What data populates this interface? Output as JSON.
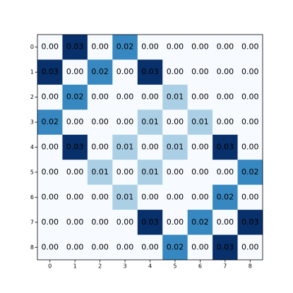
{
  "chart_data": {
    "type": "heatmap",
    "x": [
      0,
      1,
      2,
      3,
      4,
      5,
      6,
      7,
      8
    ],
    "y": [
      0,
      1,
      2,
      3,
      4,
      5,
      6,
      7,
      8
    ],
    "values": [
      [
        0.0,
        0.03,
        0.0,
        0.02,
        0.0,
        0.0,
        0.0,
        0.0,
        0.0
      ],
      [
        0.03,
        0.0,
        0.02,
        0.0,
        0.03,
        0.0,
        0.0,
        0.0,
        0.0
      ],
      [
        0.0,
        0.02,
        0.0,
        0.0,
        0.0,
        0.01,
        0.0,
        0.0,
        0.0
      ],
      [
        0.02,
        0.0,
        0.0,
        0.0,
        0.01,
        0.0,
        0.01,
        0.0,
        0.0
      ],
      [
        0.0,
        0.03,
        0.0,
        0.01,
        0.0,
        0.01,
        0.0,
        0.03,
        0.0
      ],
      [
        0.0,
        0.0,
        0.01,
        0.0,
        0.01,
        0.0,
        0.0,
        0.0,
        0.02
      ],
      [
        0.0,
        0.0,
        0.0,
        0.01,
        0.0,
        0.0,
        0.0,
        0.02,
        0.0
      ],
      [
        0.0,
        0.0,
        0.0,
        0.0,
        0.03,
        0.0,
        0.02,
        0.0,
        0.03
      ],
      [
        0.0,
        0.0,
        0.0,
        0.0,
        0.0,
        0.02,
        0.0,
        0.03,
        0.0
      ]
    ],
    "value_labels": [
      [
        "0.00",
        "0.03",
        "0.00",
        "0.02",
        "0.00",
        "0.00",
        "0.00",
        "0.00",
        "0.00"
      ],
      [
        "0.03",
        "0.00",
        "0.02",
        "0.00",
        "0.03",
        "0.00",
        "0.00",
        "0.00",
        "0.00"
      ],
      [
        "0.00",
        "0.02",
        "0.00",
        "0.00",
        "0.00",
        "0.01",
        "0.00",
        "0.00",
        "0.00"
      ],
      [
        "0.02",
        "0.00",
        "0.00",
        "0.00",
        "0.01",
        "0.00",
        "0.01",
        "0.00",
        "0.00"
      ],
      [
        "0.00",
        "0.03",
        "0.00",
        "0.01",
        "0.00",
        "0.01",
        "0.00",
        "0.03",
        "0.00"
      ],
      [
        "0.00",
        "0.00",
        "0.01",
        "0.00",
        "0.01",
        "0.00",
        "0.00",
        "0.00",
        "0.02"
      ],
      [
        "0.00",
        "0.00",
        "0.00",
        "0.01",
        "0.00",
        "0.00",
        "0.00",
        "0.02",
        "0.00"
      ],
      [
        "0.00",
        "0.00",
        "0.00",
        "0.00",
        "0.03",
        "0.00",
        "0.02",
        "0.00",
        "0.03"
      ],
      [
        "0.00",
        "0.00",
        "0.00",
        "0.00",
        "0.00",
        "0.02",
        "0.00",
        "0.03",
        "0.00"
      ]
    ],
    "colormap": [
      "#f7fbff",
      "#deebf7",
      "#c6dbef",
      "#9ecae1",
      "#6baed6",
      "#4292c6",
      "#2171b5",
      "#08519c",
      "#08306b"
    ]
  }
}
